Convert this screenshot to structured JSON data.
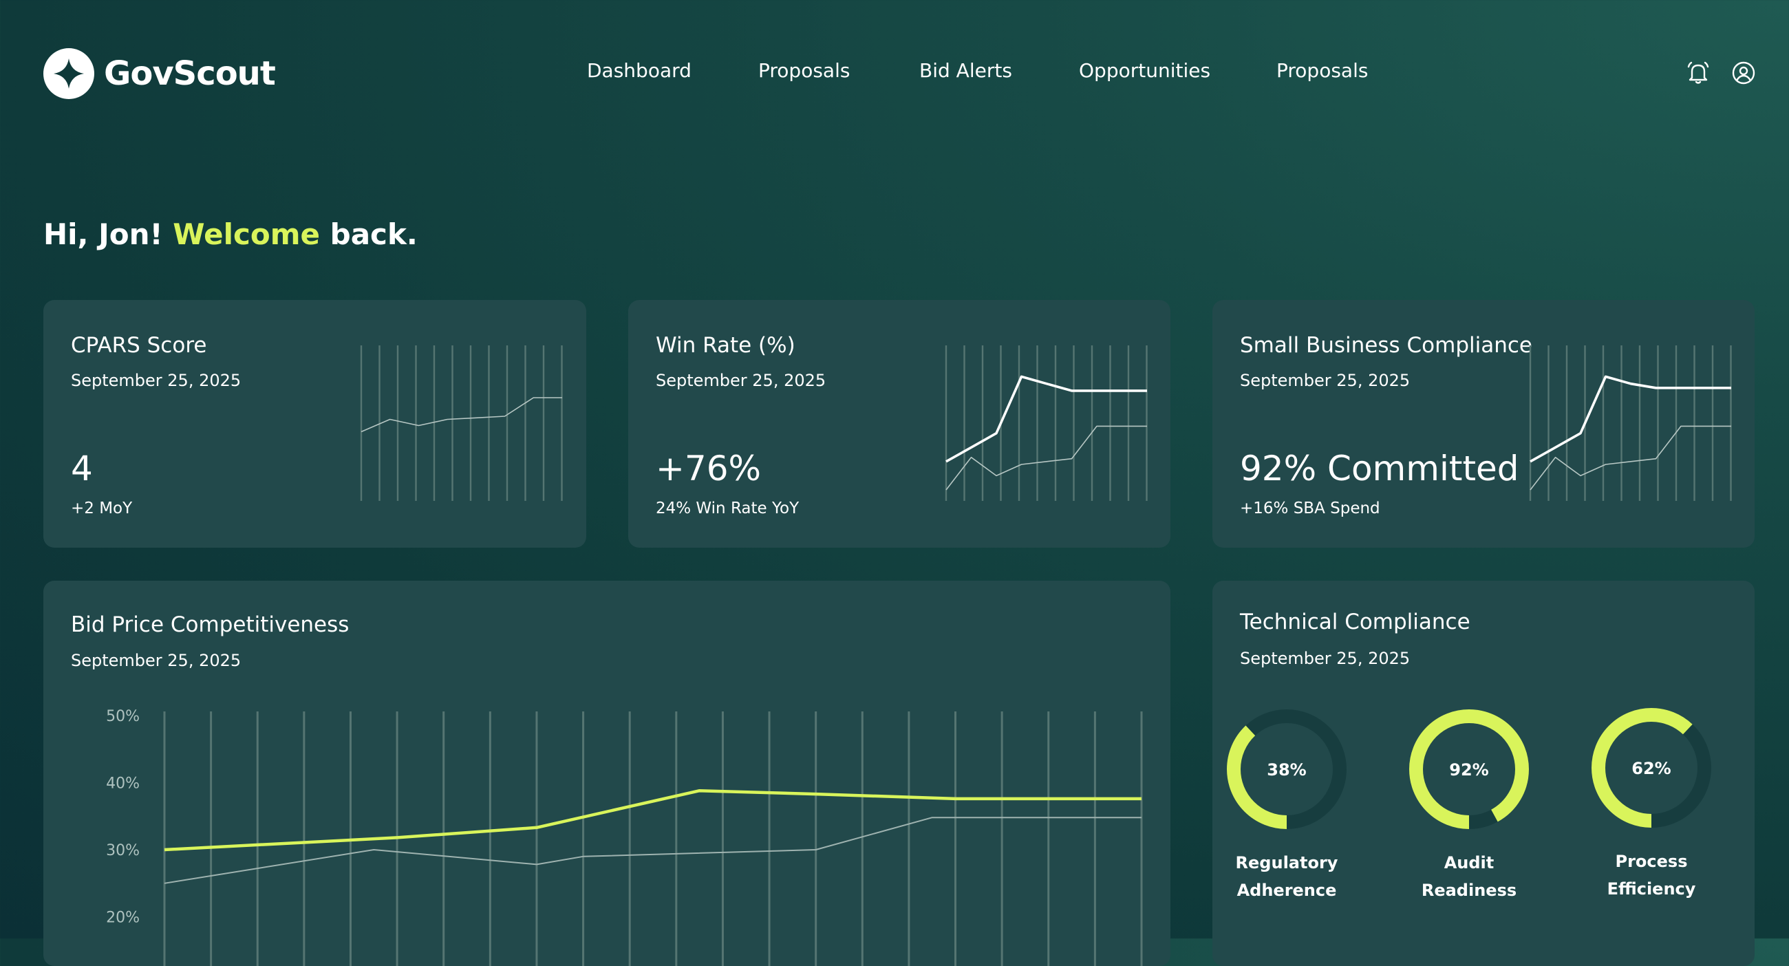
{
  "brand": {
    "name": "GovScout"
  },
  "nav": {
    "items": [
      {
        "label": "Dashboard"
      },
      {
        "label": "Proposals"
      },
      {
        "label": "Bid Alerts"
      },
      {
        "label": "Opportunities"
      },
      {
        "label": "Proposals"
      }
    ]
  },
  "header_icons": [
    "bell-icon",
    "user-icon"
  ],
  "greeting": {
    "prefix": "Hi, Jon!",
    "accent": "Welcome",
    "suffix": "back."
  },
  "colors": {
    "accent": "#d9f45b",
    "card": "#22494b",
    "background": "#0f3a3a"
  },
  "cards": {
    "cpars": {
      "title": "CPARS Score",
      "date": "September 25, 2025",
      "value": "4",
      "sub": "+2 MoY"
    },
    "winrate": {
      "title": "Win Rate (%)",
      "date": "September 25, 2025",
      "value": "+76%",
      "sub": "24%  Win Rate YoY"
    },
    "sba": {
      "title": "Small Business Compliance",
      "date": "September 25, 2025",
      "value": "92% Committed",
      "sub": "+16% SBA Spend"
    }
  },
  "bid_price": {
    "title": "Bid Price Competitiveness",
    "date": "September 25, 2025"
  },
  "technical": {
    "title": "Technical Compliance",
    "date": "September 25, 2025",
    "items": [
      {
        "value": "38%",
        "fraction": 0.38,
        "label_line1": "Regulatory",
        "label_line2": "Adherence"
      },
      {
        "value": "92%",
        "fraction": 0.92,
        "label_line1": "Audit",
        "label_line2": "Readiness"
      },
      {
        "value": "62%",
        "fraction": 0.62,
        "label_line1": "Process",
        "label_line2": "Efficiency"
      }
    ]
  },
  "chart_data": [
    {
      "type": "line",
      "name": "cpars-sparkline",
      "x": [
        1,
        2,
        3,
        4,
        5,
        6,
        7,
        8
      ],
      "series": [
        {
          "values": [
            2.9,
            3.3,
            3.1,
            3.3,
            3.35,
            3.4,
            4.0,
            4.0
          ]
        }
      ],
      "ylim": [
        0,
        10
      ]
    },
    {
      "type": "line",
      "name": "winrate-sparkline",
      "x": [
        1,
        2,
        3,
        4,
        5,
        6,
        7,
        8,
        9
      ],
      "series": [
        {
          "values": [
            20,
            30,
            40,
            80,
            75,
            70,
            70,
            70,
            70
          ]
        },
        {
          "values": [
            0,
            23,
            10,
            18,
            20,
            22,
            45,
            45,
            45
          ]
        }
      ],
      "ylim": [
        0,
        100
      ]
    },
    {
      "type": "line",
      "name": "sba-sparkline",
      "x": [
        1,
        2,
        3,
        4,
        5,
        6,
        7,
        8,
        9
      ],
      "series": [
        {
          "values": [
            20,
            30,
            40,
            80,
            75,
            72,
            72,
            72,
            72
          ]
        },
        {
          "values": [
            0,
            23,
            10,
            18,
            20,
            22,
            45,
            45,
            45
          ]
        }
      ],
      "ylim": [
        0,
        100
      ]
    },
    {
      "type": "line",
      "name": "bid-price-competitiveness",
      "title": "Bid Price Competitiveness",
      "x": [
        0,
        1,
        2,
        3,
        4,
        5,
        6,
        7,
        8,
        9,
        10,
        11,
        12,
        13,
        14,
        15,
        16,
        17,
        18,
        19,
        20,
        21
      ],
      "ylim": [
        10,
        50
      ],
      "yticks": [
        "50%",
        "40%",
        "30%",
        "20%"
      ],
      "ytick_values": [
        50,
        40,
        30,
        20
      ],
      "grid": true,
      "series": [
        {
          "color": "#d9f45b",
          "points": [
            [
              0,
              30
            ],
            [
              5,
              31.8
            ],
            [
              8,
              33.3
            ],
            [
              11.5,
              38.8
            ],
            [
              14,
              38.3
            ],
            [
              17,
              37.6
            ],
            [
              21,
              37.6
            ]
          ]
        },
        {
          "color": "#9fb3b0",
          "points": [
            [
              0,
              25
            ],
            [
              4.5,
              30
            ],
            [
              8,
              27.8
            ],
            [
              9,
              29
            ],
            [
              14,
              30
            ],
            [
              16.5,
              34.8
            ],
            [
              21,
              34.8
            ]
          ]
        }
      ]
    }
  ]
}
